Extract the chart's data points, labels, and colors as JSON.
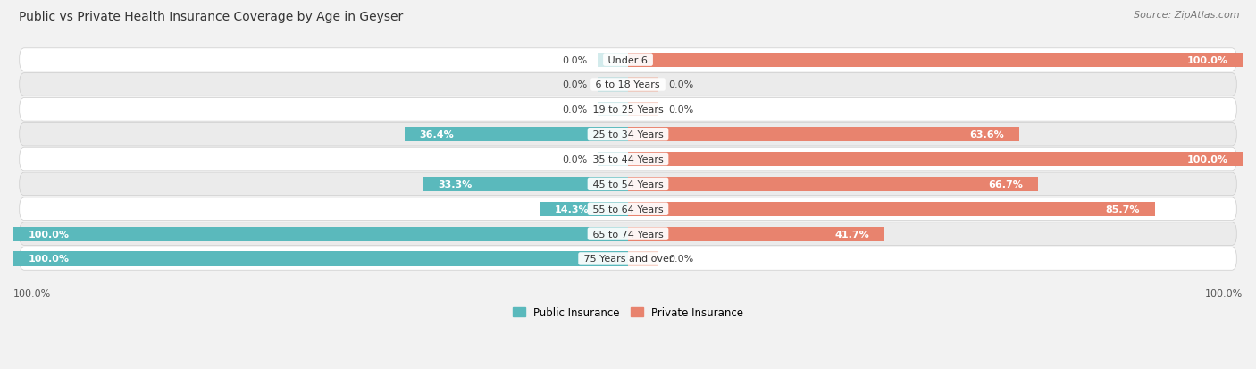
{
  "title": "Public vs Private Health Insurance Coverage by Age in Geyser",
  "source": "Source: ZipAtlas.com",
  "categories": [
    "Under 6",
    "6 to 18 Years",
    "19 to 25 Years",
    "25 to 34 Years",
    "35 to 44 Years",
    "45 to 54 Years",
    "55 to 64 Years",
    "65 to 74 Years",
    "75 Years and over"
  ],
  "public_values": [
    0.0,
    0.0,
    0.0,
    36.4,
    0.0,
    33.3,
    14.3,
    100.0,
    100.0
  ],
  "private_values": [
    100.0,
    0.0,
    0.0,
    63.6,
    100.0,
    66.7,
    85.7,
    41.7,
    0.0
  ],
  "public_color": "#5ab9bc",
  "private_color": "#e8836e",
  "private_zero_color": "#f0b8a8",
  "bg_color": "#f2f2f2",
  "row_color_even": "#ffffff",
  "row_color_odd": "#ebebeb",
  "title_fontsize": 10,
  "source_fontsize": 8,
  "label_fontsize": 8,
  "bar_height": 0.58,
  "bottom_labels": [
    "100.0%",
    "100.0%"
  ]
}
